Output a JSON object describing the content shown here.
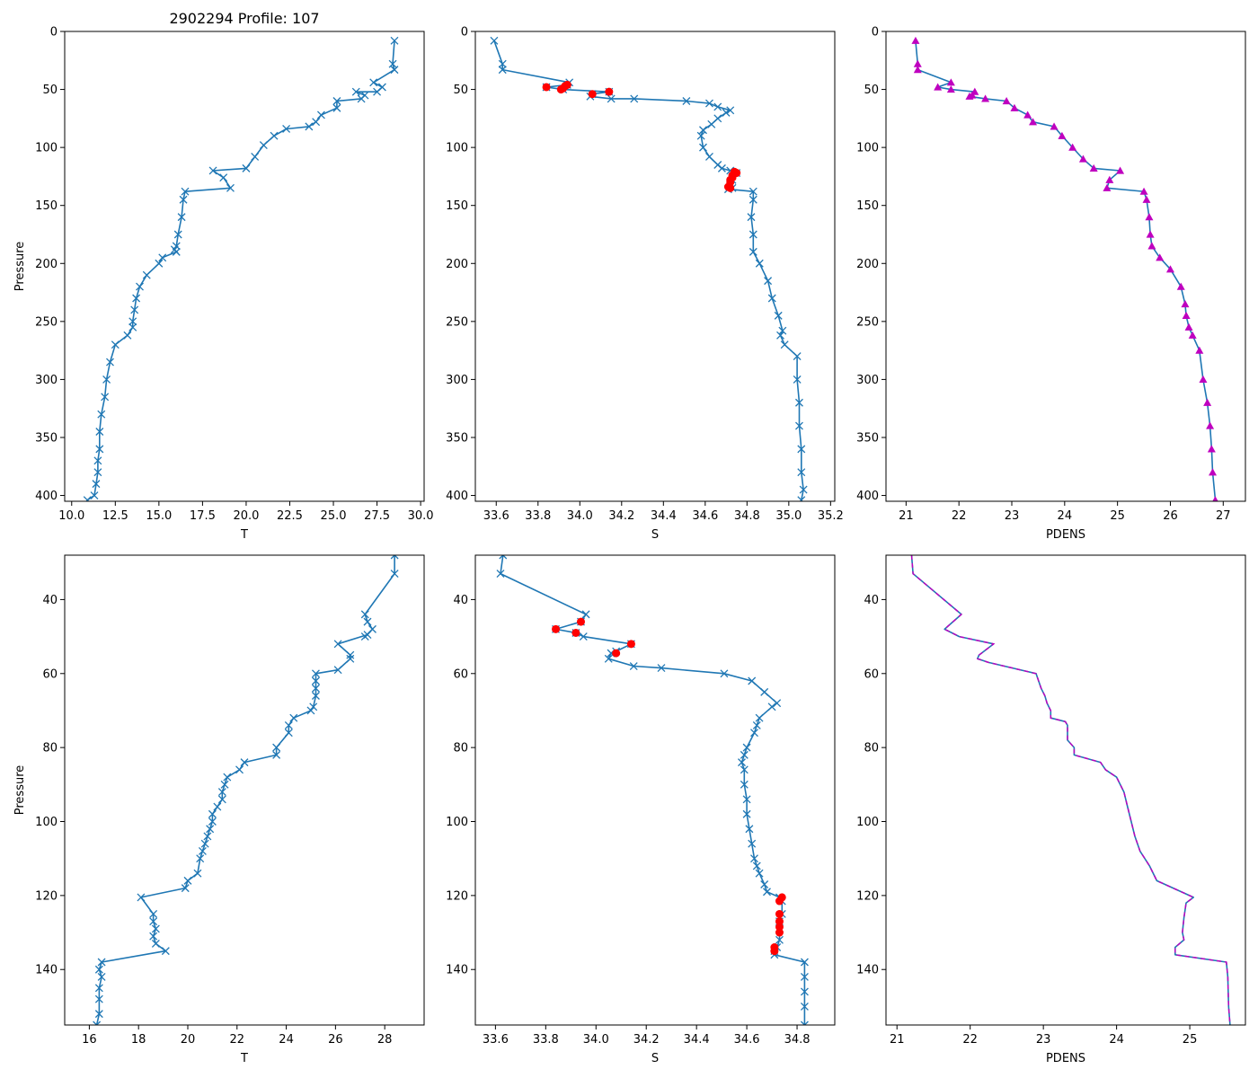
{
  "figure_title": "2902294 Profile: 107",
  "colors": {
    "line": "#1f77b4",
    "flag": "#ff0000",
    "density": "#bf00bf"
  },
  "chart_data": [
    {
      "id": "top-t",
      "type": "line",
      "title": "2902294 Profile: 107",
      "xlabel": "T",
      "ylabel": "Pressure",
      "xlim": [
        9.6,
        30.2
      ],
      "ylim": [
        405,
        0
      ],
      "xticks": [
        10.0,
        12.5,
        15.0,
        17.5,
        20.0,
        22.5,
        25.0,
        27.5,
        30.0
      ],
      "xtick_labels": [
        "10.0",
        "12.5",
        "15.0",
        "17.5",
        "20.0",
        "22.5",
        "25.0",
        "27.5",
        "30.0"
      ],
      "yticks": [
        0,
        50,
        100,
        150,
        200,
        250,
        300,
        350,
        400
      ],
      "ytick_labels": [
        "0",
        "50",
        "100",
        "150",
        "200",
        "250",
        "300",
        "350",
        "400"
      ],
      "marker": "x",
      "series": [
        {
          "name": "T",
          "x": [
            28.5,
            28.4,
            28.5,
            27.3,
            27.8,
            27.5,
            26.3,
            26.8,
            26.6,
            25.2,
            25.2,
            24.3,
            24.0,
            23.6,
            22.3,
            21.6,
            21.0,
            20.5,
            20.0,
            18.1,
            18.7,
            19.1,
            16.5,
            16.4,
            16.3,
            16.1,
            16.0,
            15.9,
            16.0,
            15.2,
            15.0,
            14.3,
            13.9,
            13.7,
            13.6,
            13.5,
            13.5,
            13.2,
            12.5,
            12.2,
            12.0,
            11.9,
            11.7,
            11.6,
            11.6,
            11.5,
            11.5,
            11.4,
            11.3,
            10.9
          ],
          "y": [
            8,
            28,
            33,
            44,
            48,
            52,
            52,
            55,
            58,
            60,
            66,
            72,
            78,
            82,
            84,
            90,
            98,
            108,
            118,
            120,
            126,
            135,
            138,
            145,
            160,
            175,
            185,
            188,
            190,
            195,
            200,
            210,
            220,
            230,
            240,
            250,
            255,
            262,
            270,
            285,
            300,
            315,
            330,
            345,
            360,
            370,
            380,
            390,
            400,
            404
          ]
        }
      ]
    },
    {
      "id": "top-s",
      "type": "line",
      "title": "",
      "xlabel": "S",
      "ylabel": "",
      "xlim": [
        33.5,
        35.22
      ],
      "ylim": [
        405,
        0
      ],
      "xticks": [
        33.6,
        33.8,
        34.0,
        34.2,
        34.4,
        34.6,
        34.8,
        35.0,
        35.2
      ],
      "xtick_labels": [
        "33.6",
        "33.8",
        "34.0",
        "34.2",
        "34.4",
        "34.6",
        "34.8",
        "35.0",
        "35.2"
      ],
      "yticks": [
        0,
        50,
        100,
        150,
        200,
        250,
        300,
        350,
        400
      ],
      "ytick_labels": [
        "0",
        "50",
        "100",
        "150",
        "200",
        "250",
        "300",
        "350",
        "400"
      ],
      "marker": "x",
      "series": [
        {
          "name": "S",
          "x": [
            33.59,
            33.63,
            33.63,
            33.95,
            33.94,
            33.84,
            33.92,
            34.14,
            34.06,
            34.05,
            34.15,
            34.26,
            34.51,
            34.62,
            34.66,
            34.72,
            34.7,
            34.66,
            34.63,
            34.59,
            34.58,
            34.59,
            34.62,
            34.66,
            34.68,
            34.72,
            34.75,
            34.73,
            34.72,
            34.73,
            34.71,
            34.83,
            34.83,
            34.82,
            34.83,
            34.83,
            34.86,
            34.9,
            34.92,
            34.95,
            34.97,
            34.96,
            34.98,
            35.04,
            35.04,
            35.05,
            35.05,
            35.06,
            35.06,
            35.07,
            35.06
          ],
          "y": [
            8,
            28,
            33,
            44,
            46,
            48,
            50,
            52,
            54,
            56,
            58,
            58,
            60,
            62,
            65,
            68,
            70,
            75,
            80,
            85,
            90,
            100,
            108,
            115,
            118,
            120,
            122,
            128,
            132,
            135,
            136,
            138,
            145,
            160,
            175,
            190,
            200,
            215,
            230,
            245,
            258,
            262,
            270,
            280,
            300,
            320,
            340,
            360,
            380,
            395,
            404
          ]
        }
      ],
      "flags": {
        "x": [
          33.94,
          33.84,
          33.92,
          34.14,
          34.06,
          33.93,
          33.91,
          34.74,
          34.75,
          34.73,
          34.73,
          34.72,
          34.72,
          34.71,
          34.72
        ],
        "y": [
          46,
          48,
          49,
          52,
          54,
          47,
          50,
          121,
          122,
          124,
          126,
          128,
          130,
          134,
          135
        ]
      }
    },
    {
      "id": "top-pdens",
      "type": "line",
      "title": "",
      "xlabel": "PDENS",
      "ylabel": "",
      "xlim": [
        20.62,
        27.42
      ],
      "ylim": [
        405,
        0
      ],
      "xticks": [
        21,
        22,
        23,
        24,
        25,
        26,
        27
      ],
      "xtick_labels": [
        "21",
        "22",
        "23",
        "24",
        "25",
        "26",
        "27"
      ],
      "yticks": [
        0,
        50,
        100,
        150,
        200,
        250,
        300,
        350,
        400
      ],
      "ytick_labels": [
        "0",
        "50",
        "100",
        "150",
        "200",
        "250",
        "300",
        "350",
        "400"
      ],
      "marker": "triangle",
      "series": [
        {
          "name": "PDENS",
          "x": [
            21.18,
            21.22,
            21.22,
            21.85,
            21.6,
            21.85,
            22.3,
            22.25,
            22.2,
            22.5,
            22.9,
            23.05,
            23.3,
            23.4,
            23.8,
            23.95,
            24.15,
            24.35,
            24.55,
            25.05,
            24.85,
            24.8,
            25.5,
            25.55,
            25.6,
            25.62,
            25.65,
            25.8,
            26.0,
            26.2,
            26.28,
            26.3,
            26.35,
            26.42,
            26.55,
            26.62,
            26.7,
            26.75,
            26.78,
            26.8,
            26.85
          ],
          "y": [
            8,
            28,
            33,
            44,
            48,
            50,
            52,
            55,
            56,
            58,
            60,
            66,
            72,
            78,
            82,
            90,
            100,
            110,
            118,
            120,
            128,
            135,
            138,
            145,
            160,
            175,
            185,
            195,
            205,
            220,
            235,
            245,
            255,
            262,
            275,
            300,
            320,
            340,
            360,
            380,
            404
          ]
        }
      ]
    },
    {
      "id": "bottom-t",
      "type": "line",
      "title": "",
      "xlabel": "T",
      "ylabel": "Pressure",
      "xlim": [
        15.0,
        29.6
      ],
      "ylim": [
        155,
        28
      ],
      "xticks": [
        16,
        18,
        20,
        22,
        24,
        26,
        28
      ],
      "xtick_labels": [
        "16",
        "18",
        "20",
        "22",
        "24",
        "26",
        "28"
      ],
      "yticks": [
        40,
        60,
        80,
        100,
        120,
        140
      ],
      "ytick_labels": [
        "40",
        "60",
        "80",
        "100",
        "120",
        "140"
      ],
      "marker": "x",
      "series": [
        {
          "name": "T",
          "x": [
            28.4,
            28.4,
            27.2,
            27.3,
            27.5,
            27.2,
            27.3,
            26.1,
            26.6,
            26.6,
            26.1,
            25.2,
            25.2,
            25.2,
            25.2,
            25.1,
            25.0,
            24.3,
            24.1,
            24.1,
            23.6,
            23.6,
            22.3,
            22.1,
            21.6,
            21.5,
            21.4,
            21.4,
            21.2,
            21.0,
            21.0,
            20.9,
            20.8,
            20.7,
            20.6,
            20.5,
            20.4,
            20.0,
            19.9,
            18.1,
            18.6,
            18.6,
            18.7,
            18.6,
            18.7,
            19.1,
            16.5,
            16.4,
            16.5,
            16.4,
            16.4,
            16.4,
            16.3
          ],
          "y": [
            28,
            33,
            44,
            46,
            48,
            50,
            49.5,
            52,
            55,
            56,
            59,
            60,
            62,
            64,
            66,
            69,
            70,
            72,
            74,
            76,
            80,
            82,
            84,
            86,
            88,
            90,
            92,
            94,
            96,
            98,
            100,
            102,
            104,
            106,
            108,
            110,
            114,
            116,
            118,
            120.5,
            125,
            127,
            129,
            131,
            133,
            135,
            138,
            140,
            142,
            145,
            148,
            152,
            155
          ]
        }
      ]
    },
    {
      "id": "bottom-s",
      "type": "line",
      "title": "",
      "xlabel": "S",
      "ylabel": "",
      "xlim": [
        33.52,
        34.95
      ],
      "ylim": [
        155,
        28
      ],
      "xticks": [
        33.6,
        33.8,
        34.0,
        34.2,
        34.4,
        34.6,
        34.8
      ],
      "xtick_labels": [
        "33.6",
        "33.8",
        "34.0",
        "34.2",
        "34.4",
        "34.6",
        "34.8"
      ],
      "yticks": [
        40,
        60,
        80,
        100,
        120,
        140
      ],
      "ytick_labels": [
        "40",
        "60",
        "80",
        "100",
        "120",
        "140"
      ],
      "marker": "x",
      "series": [
        {
          "name": "S",
          "x": [
            33.63,
            33.62,
            33.96,
            33.94,
            33.84,
            33.92,
            33.95,
            34.14,
            34.08,
            34.06,
            34.05,
            34.15,
            34.26,
            34.51,
            34.62,
            34.67,
            34.72,
            34.7,
            34.65,
            34.64,
            34.63,
            34.6,
            34.59,
            34.58,
            34.59,
            34.59,
            34.6,
            34.6,
            34.61,
            34.62,
            34.63,
            34.64,
            34.65,
            34.67,
            34.68,
            34.73,
            34.74,
            34.74,
            34.73,
            34.73,
            34.73,
            34.72,
            34.71,
            34.71,
            34.83,
            34.83,
            34.83,
            34.83,
            34.83
          ],
          "y": [
            28,
            33,
            44,
            46,
            48,
            49,
            50,
            52,
            54,
            54.5,
            56,
            58,
            58.5,
            60,
            62,
            65,
            68,
            69,
            72,
            74,
            76,
            80,
            82,
            84,
            86,
            90,
            94,
            98,
            102,
            106,
            110,
            112,
            114,
            117,
            119,
            120.5,
            121.5,
            125,
            127,
            129,
            132,
            134,
            135,
            136,
            138,
            142,
            146,
            150,
            155
          ]
        }
      ],
      "flags": {
        "x": [
          33.94,
          33.84,
          33.92,
          34.14,
          34.08,
          34.74,
          34.73,
          34.73,
          34.73,
          34.73,
          34.73,
          34.71,
          34.71
        ],
        "y": [
          46,
          48,
          49,
          52,
          54.5,
          120.5,
          121.5,
          125,
          127,
          128.5,
          130,
          134,
          135
        ]
      }
    },
    {
      "id": "bottom-pdens",
      "type": "line",
      "title": "",
      "xlabel": "PDENS",
      "ylabel": "",
      "xlim": [
        20.85,
        25.76
      ],
      "ylim": [
        155,
        28
      ],
      "xticks": [
        21,
        22,
        23,
        24,
        25
      ],
      "xtick_labels": [
        "21",
        "22",
        "23",
        "24",
        "25"
      ],
      "yticks": [
        40,
        60,
        80,
        100,
        120,
        140
      ],
      "ytick_labels": [
        "40",
        "60",
        "80",
        "100",
        "120",
        "140"
      ],
      "marker": "none",
      "series": [
        {
          "name": "PDENS",
          "x": [
            21.2,
            21.22,
            21.88,
            21.65,
            21.85,
            22.32,
            22.12,
            22.1,
            22.25,
            22.9,
            22.97,
            23.02,
            23.05,
            23.1,
            23.1,
            23.3,
            23.33,
            23.33,
            23.42,
            23.42,
            23.78,
            23.85,
            24.0,
            24.1,
            24.15,
            24.2,
            24.25,
            24.32,
            24.45,
            24.55,
            25.05,
            24.95,
            24.92,
            24.9,
            24.92,
            24.8,
            24.8,
            25.5,
            25.52,
            25.53,
            25.55
          ],
          "y": [
            28,
            33,
            44,
            48,
            50,
            52,
            55,
            56,
            57,
            60,
            64,
            66,
            68,
            70,
            72,
            73,
            74,
            78,
            80,
            82,
            84,
            86,
            88,
            92,
            96,
            100,
            104,
            108,
            112,
            116,
            120.5,
            122,
            126,
            130,
            132,
            134,
            136,
            138,
            142,
            150,
            155
          ]
        }
      ]
    }
  ]
}
